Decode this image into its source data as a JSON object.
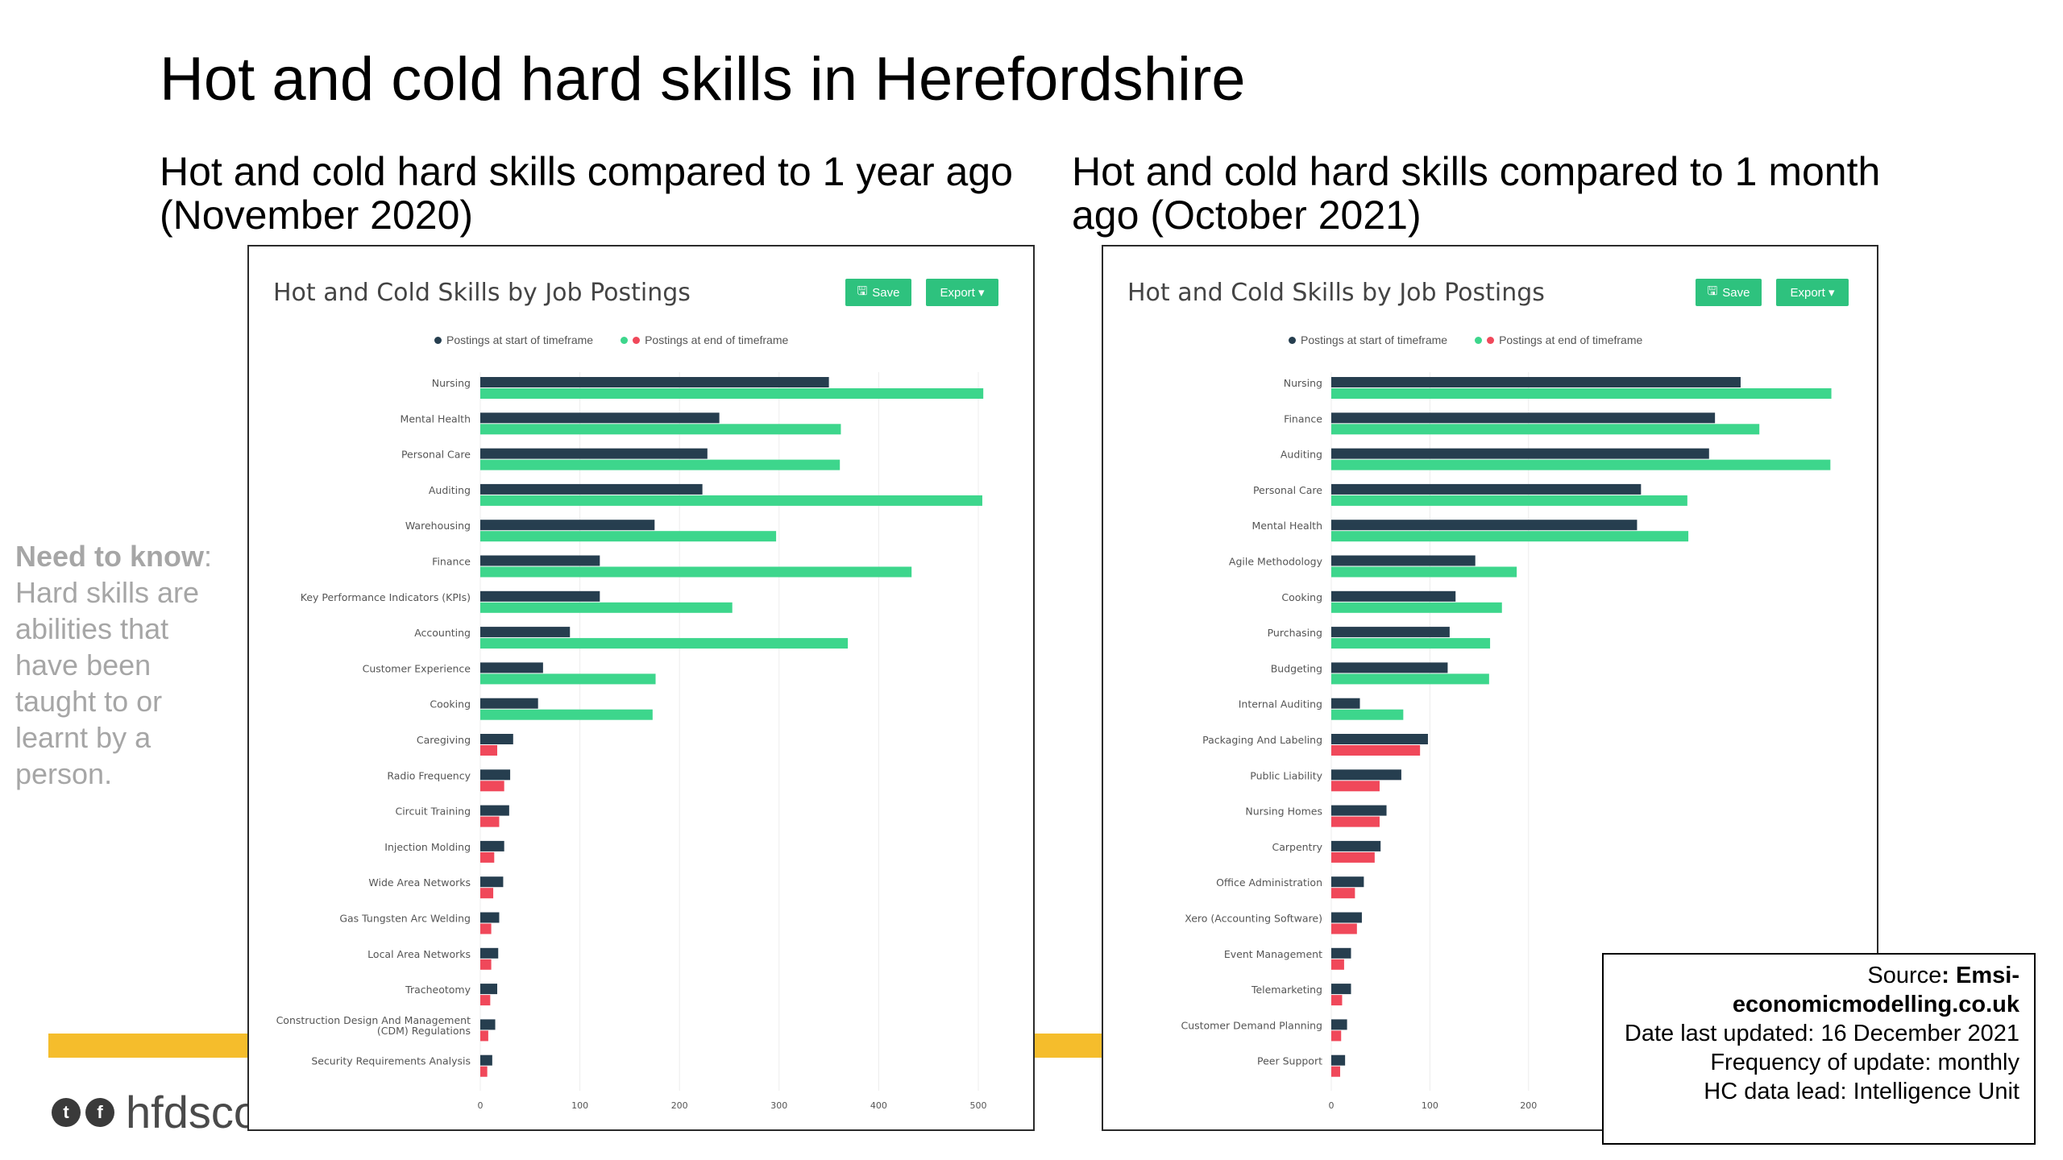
{
  "page": {
    "title": "Hot and cold hard skills in Herefordshire",
    "left_heading": "Hot and cold hard skills compared to 1 year ago (November 2020)",
    "right_heading": "Hot and cold hard skills compared to 1 month ago (October 2021)"
  },
  "side_note": {
    "heading": "Need to know",
    "body": "Hard skills are abilities that have been taught to or learnt by a person."
  },
  "logo": {
    "text": "hfdsco",
    "icons": [
      "twitter-icon",
      "facebook-icon"
    ]
  },
  "colors": {
    "start": "#263e4f",
    "end_up": "#3dd68c",
    "end_down": "#f0485a",
    "accent": "#2ec27e",
    "band": "#f5bd2c"
  },
  "charts": [
    {
      "title": "Hot and Cold Skills by Job Postings",
      "save_label": "Save",
      "export_label": "Export ▾",
      "legend_start": "Postings at start of timeframe",
      "legend_end": "Postings at end of timeframe"
    },
    {
      "title": "Hot and Cold Skills by Job Postings",
      "save_label": "Save",
      "export_label": "Export ▾",
      "legend_start": "Postings at start of timeframe",
      "legend_end": "Postings at end of timeframe"
    }
  ],
  "chart_data": [
    {
      "type": "bar",
      "orientation": "horizontal",
      "xlim": [
        0,
        500
      ],
      "xticks": [
        0,
        100,
        200,
        300,
        400,
        500
      ],
      "categories": [
        "Nursing",
        "Mental Health",
        "Personal Care",
        "Auditing",
        "Warehousing",
        "Finance",
        "Key Performance Indicators (KPIs)",
        "Accounting",
        "Customer Experience",
        "Cooking",
        "Caregiving",
        "Radio Frequency",
        "Circuit Training",
        "Injection Molding",
        "Wide Area Networks",
        "Gas Tungsten Arc Welding",
        "Local Area Networks",
        "Tracheotomy",
        "Construction Design And Management (CDM) Regulations",
        "Security Requirements Analysis"
      ],
      "series": [
        {
          "name": "Postings at start of timeframe",
          "values": [
            350,
            240,
            228,
            223,
            175,
            120,
            120,
            90,
            63,
            58,
            33,
            30,
            29,
            24,
            23,
            19,
            18,
            17,
            15,
            12
          ]
        },
        {
          "name": "Postings at end of timeframe",
          "values": [
            505,
            362,
            361,
            504,
            297,
            433,
            253,
            369,
            176,
            173,
            17,
            24,
            19,
            14,
            13,
            11,
            11,
            10,
            8,
            7
          ]
        }
      ]
    },
    {
      "type": "bar",
      "orientation": "horizontal",
      "xlim": [
        0,
        500
      ],
      "xticks": [
        0,
        100,
        200
      ],
      "categories": [
        "Nursing",
        "Finance",
        "Auditing",
        "Personal Care",
        "Mental Health",
        "Agile Methodology",
        "Cooking",
        "Purchasing",
        "Budgeting",
        "Internal Auditing",
        "Packaging And Labeling",
        "Public Liability",
        "Nursing Homes",
        "Carpentry",
        "Office Administration",
        "Xero (Accounting Software)",
        "Event Management",
        "Telemarketing",
        "Customer Demand Planning",
        "Peer Support"
      ],
      "series": [
        {
          "name": "Postings at start of timeframe",
          "values": [
            415,
            389,
            383,
            314,
            310,
            146,
            126,
            120,
            118,
            29,
            98,
            71,
            56,
            50,
            33,
            31,
            20,
            20,
            16,
            14
          ]
        },
        {
          "name": "Postings at end of timeframe",
          "values": [
            507,
            434,
            506,
            361,
            362,
            188,
            173,
            161,
            160,
            73,
            90,
            49,
            49,
            44,
            24,
            26,
            13,
            11,
            10,
            9
          ]
        }
      ]
    }
  ],
  "source": {
    "label": "Source",
    "value": "Emsi-economicmodelling.co.uk",
    "updated": "Date last updated: 16 December 2021",
    "frequency": "Frequency of update: monthly",
    "lead": "HC data lead: Intelligence Unit"
  }
}
